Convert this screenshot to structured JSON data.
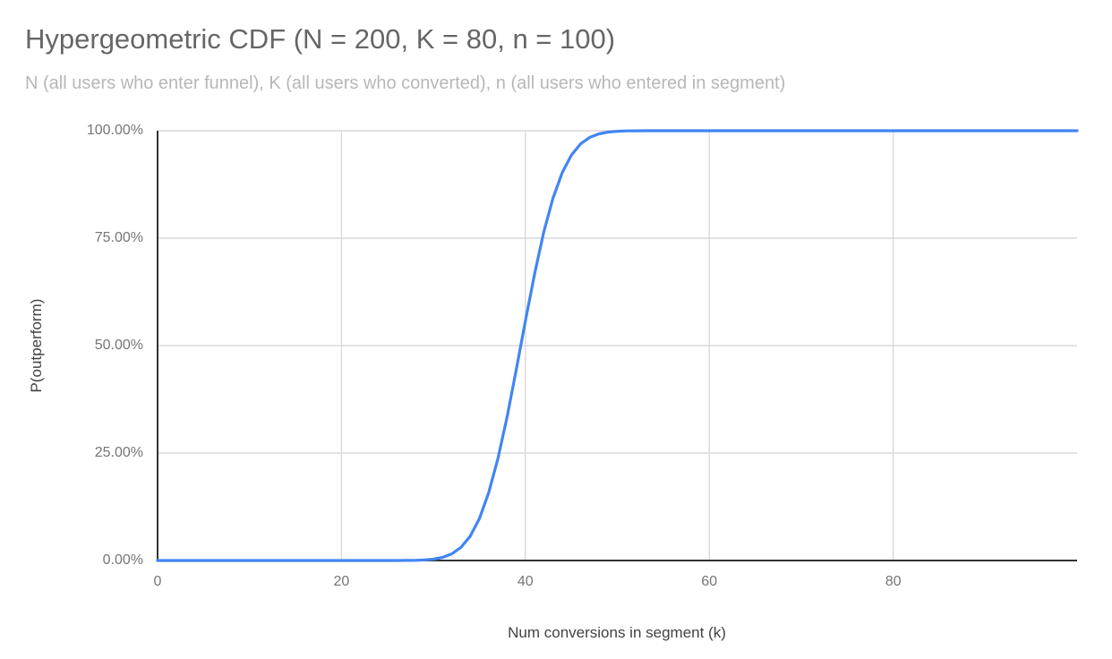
{
  "chart": {
    "title": "Hypergeometric CDF (N = 200, K = 80, n = 100)",
    "subtitle": "N (all users who enter funnel), K (all users who converted), n (all users who entered in segment)",
    "x_axis_title": "Num conversions in segment (k)",
    "y_axis_title": "P(outperform)"
  },
  "colors": {
    "line": "#4285f4",
    "grid": "#d9d9d9",
    "axis": "#333333",
    "tick_label": "#757575",
    "axis_title": "#424242",
    "title": "#666666",
    "subtitle": "#b7b7b7",
    "background": "#ffffff"
  },
  "chart_data": {
    "type": "line",
    "title": "Hypergeometric CDF (N = 200, K = 80, n = 100)",
    "subtitle": "N (all users who enter funnel), K (all users who converted), n (all users who entered in segment)",
    "xlabel": "Num conversions in segment (k)",
    "ylabel": "P(outperform)",
    "xlim": [
      0,
      100
    ],
    "ylim": [
      0,
      1
    ],
    "grid": true,
    "legend_position": "none",
    "x_ticks": {
      "values": [
        0,
        20,
        40,
        60,
        80
      ],
      "labels": [
        "0",
        "20",
        "40",
        "60",
        "80"
      ]
    },
    "y_ticks": {
      "values": [
        0,
        0.25,
        0.5,
        0.75,
        1
      ],
      "labels": [
        "0.00%",
        "25.00%",
        "50.00%",
        "75.00%",
        "100.00%"
      ]
    },
    "series": [
      {
        "name": "P(outperform)",
        "color": "#4285f4",
        "points": [
          [
            0,
            0
          ],
          [
            5,
            0
          ],
          [
            10,
            0
          ],
          [
            15,
            0
          ],
          [
            20,
            0
          ],
          [
            24,
            0
          ],
          [
            25,
            0.0
          ],
          [
            26,
            0.0001
          ],
          [
            27,
            0.0002
          ],
          [
            28,
            0.0005
          ],
          [
            29,
            0.0013
          ],
          [
            30,
            0.0031
          ],
          [
            31,
            0.0072
          ],
          [
            32,
            0.0154
          ],
          [
            33,
            0.0307
          ],
          [
            34,
            0.0567
          ],
          [
            35,
            0.0977
          ],
          [
            36,
            0.157
          ],
          [
            37,
            0.2361
          ],
          [
            38,
            0.3333
          ],
          [
            39,
            0.4429
          ],
          [
            40,
            0.5571
          ],
          [
            41,
            0.6668
          ],
          [
            42,
            0.764
          ],
          [
            43,
            0.843
          ],
          [
            44,
            0.9023
          ],
          [
            45,
            0.9433
          ],
          [
            46,
            0.9693
          ],
          [
            47,
            0.9846
          ],
          [
            48,
            0.9928
          ],
          [
            49,
            0.9969
          ],
          [
            50,
            0.9988
          ],
          [
            51,
            0.9995
          ],
          [
            52,
            0.9998
          ],
          [
            53,
            0.9999
          ],
          [
            54,
            1
          ],
          [
            55,
            1
          ],
          [
            60,
            1
          ],
          [
            70,
            1
          ],
          [
            80,
            1
          ],
          [
            90,
            1
          ],
          [
            100,
            1
          ]
        ]
      }
    ]
  }
}
